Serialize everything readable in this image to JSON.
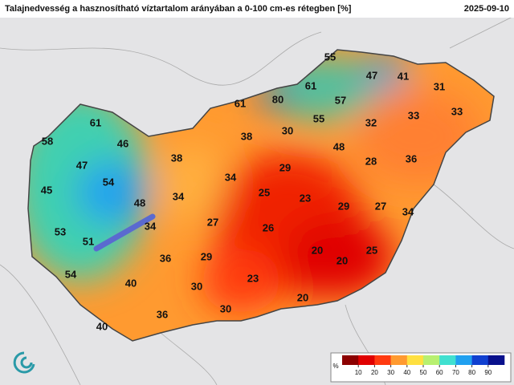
{
  "header": {
    "title": "Talajnedvesség a hasznosítható víztartalom arányában a 0-100 cm-es rétegben [%]",
    "date": "2025-09-10"
  },
  "stations": [
    55,
    47,
    41,
    31,
    61,
    80,
    61,
    57,
    33,
    33,
    61,
    38,
    30,
    55,
    32,
    58,
    46,
    48,
    47,
    38,
    29,
    28,
    36,
    54,
    34,
    45,
    34,
    25,
    23,
    48,
    29,
    27,
    34,
    27,
    26,
    34,
    53,
    51,
    36,
    29,
    20,
    20,
    25,
    54,
    40,
    30,
    23,
    20,
    30,
    36,
    40
  ],
  "legend": {
    "unit": "%",
    "ticks": [
      10,
      20,
      30,
      40,
      50,
      60,
      70,
      80,
      90
    ],
    "colors": [
      "#8c0000",
      "#e00000",
      "#ff3a10",
      "#ff9a30",
      "#ffe040",
      "#b8f070",
      "#40e0d0",
      "#20a0f0",
      "#1040d0",
      "#08108c"
    ]
  }
}
